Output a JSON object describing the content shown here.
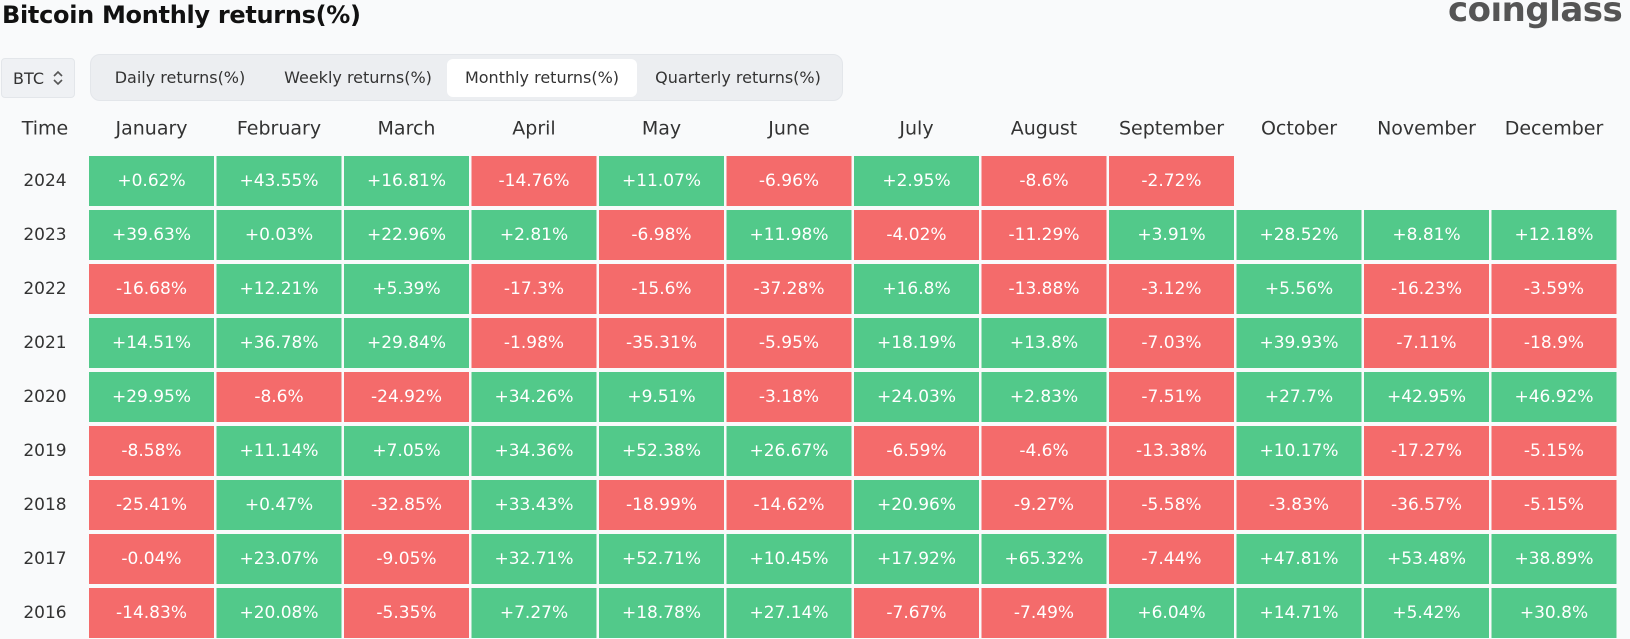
{
  "header": {
    "title": "Bitcoin Monthly returns(%)",
    "brand": "coinglass"
  },
  "coin_select": {
    "value": "BTC"
  },
  "tabs": [
    {
      "label": "Daily returns(%)",
      "active": false
    },
    {
      "label": "Weekly returns(%)",
      "active": false
    },
    {
      "label": "Monthly returns(%)",
      "active": true
    },
    {
      "label": "Quarterly returns(%)",
      "active": false
    }
  ],
  "colors": {
    "positive": "#52c98a",
    "negative": "#f46b6b",
    "text_on_cell": "#ffffff"
  },
  "chart_data": {
    "type": "table",
    "title": "Bitcoin Monthly returns(%)",
    "row_header_label": "Time",
    "columns": [
      "January",
      "February",
      "March",
      "April",
      "May",
      "June",
      "July",
      "August",
      "September",
      "October",
      "November",
      "December"
    ],
    "rows": [
      {
        "year": "2024",
        "values": [
          "+0.62%",
          "+43.55%",
          "+16.81%",
          "-14.76%",
          "+11.07%",
          "-6.96%",
          "+2.95%",
          "-8.6%",
          "-2.72%",
          null,
          null,
          null
        ]
      },
      {
        "year": "2023",
        "values": [
          "+39.63%",
          "+0.03%",
          "+22.96%",
          "+2.81%",
          "-6.98%",
          "+11.98%",
          "-4.02%",
          "-11.29%",
          "+3.91%",
          "+28.52%",
          "+8.81%",
          "+12.18%"
        ]
      },
      {
        "year": "2022",
        "values": [
          "-16.68%",
          "+12.21%",
          "+5.39%",
          "-17.3%",
          "-15.6%",
          "-37.28%",
          "+16.8%",
          "-13.88%",
          "-3.12%",
          "+5.56%",
          "-16.23%",
          "-3.59%"
        ]
      },
      {
        "year": "2021",
        "values": [
          "+14.51%",
          "+36.78%",
          "+29.84%",
          "-1.98%",
          "-35.31%",
          "-5.95%",
          "+18.19%",
          "+13.8%",
          "-7.03%",
          "+39.93%",
          "-7.11%",
          "-18.9%"
        ]
      },
      {
        "year": "2020",
        "values": [
          "+29.95%",
          "-8.6%",
          "-24.92%",
          "+34.26%",
          "+9.51%",
          "-3.18%",
          "+24.03%",
          "+2.83%",
          "-7.51%",
          "+27.7%",
          "+42.95%",
          "+46.92%"
        ]
      },
      {
        "year": "2019",
        "values": [
          "-8.58%",
          "+11.14%",
          "+7.05%",
          "+34.36%",
          "+52.38%",
          "+26.67%",
          "-6.59%",
          "-4.6%",
          "-13.38%",
          "+10.17%",
          "-17.27%",
          "-5.15%"
        ]
      },
      {
        "year": "2018",
        "values": [
          "-25.41%",
          "+0.47%",
          "-32.85%",
          "+33.43%",
          "-18.99%",
          "-14.62%",
          "+20.96%",
          "-9.27%",
          "-5.58%",
          "-3.83%",
          "-36.57%",
          "-5.15%"
        ]
      },
      {
        "year": "2017",
        "values": [
          "-0.04%",
          "+23.07%",
          "-9.05%",
          "+32.71%",
          "+52.71%",
          "+10.45%",
          "+17.92%",
          "+65.32%",
          "-7.44%",
          "+47.81%",
          "+53.48%",
          "+38.89%"
        ]
      },
      {
        "year": "2016",
        "values": [
          "-14.83%",
          "+20.08%",
          "-5.35%",
          "+7.27%",
          "+18.78%",
          "+27.14%",
          "-7.67%",
          "-7.49%",
          "+6.04%",
          "+14.71%",
          "+5.42%",
          "+30.8%"
        ]
      }
    ]
  }
}
